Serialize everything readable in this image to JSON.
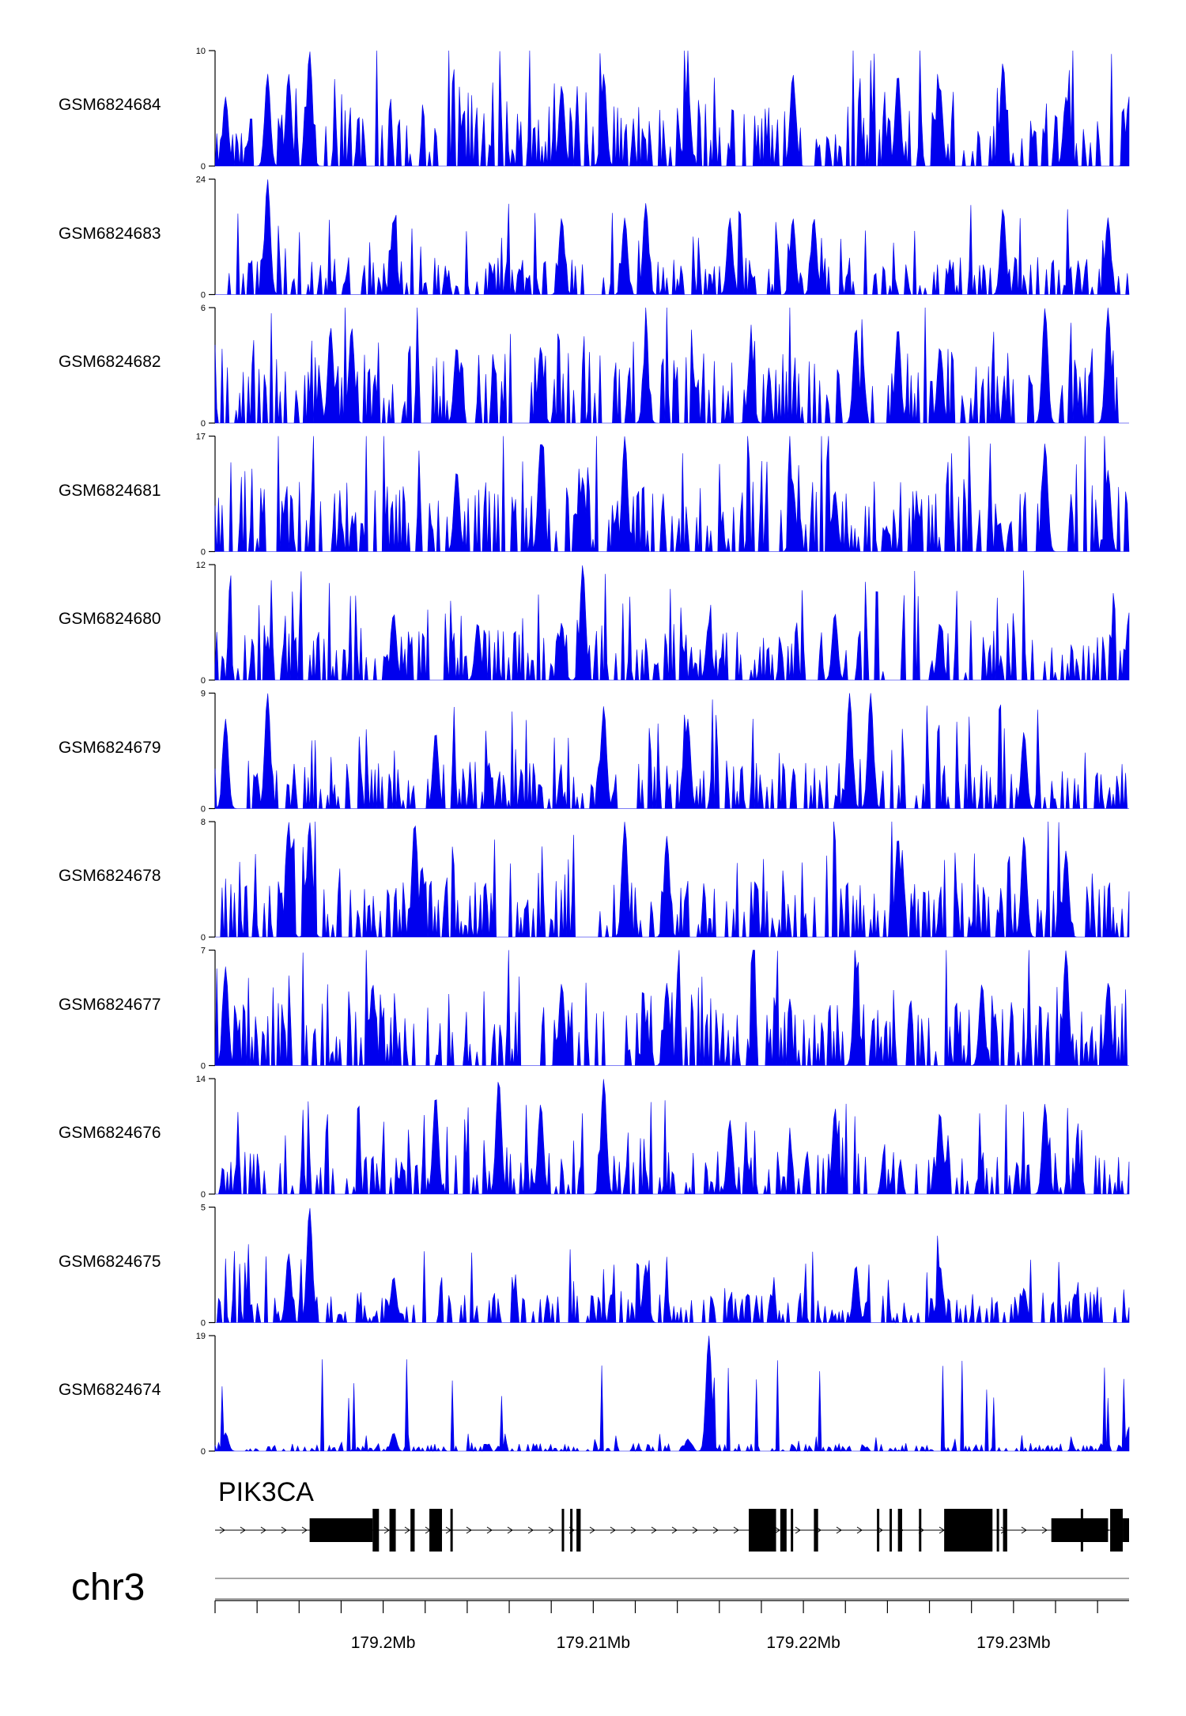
{
  "figure_title": "",
  "colors": {
    "signal": "#0000ee",
    "axis": "#000000",
    "gene": "#000000"
  },
  "gene": {
    "name": "PIK3CA",
    "strand": "+"
  },
  "chromosome": "chr3",
  "chart_data": {
    "type": "area",
    "x_unit": "Mb",
    "xlim": [
      179.192,
      179.2355
    ],
    "x_tick_labels": [
      "179.2Mb",
      "179.21Mb",
      "179.22Mb",
      "179.23Mb"
    ],
    "x_tick_label_values": [
      179.2,
      179.21,
      179.22,
      179.23
    ],
    "x_minor_ticks": [
      179.192,
      179.194,
      179.196,
      179.198,
      179.2,
      179.202,
      179.204,
      179.206,
      179.208,
      179.21,
      179.212,
      179.214,
      179.216,
      179.218,
      179.22,
      179.222,
      179.224,
      179.226,
      179.228,
      179.23,
      179.232,
      179.234
    ],
    "tracks": [
      {
        "name": "GSM6824684",
        "ymax": 10,
        "ymin_label": "0",
        "ymax_label": "10",
        "peaks": [
          [
            179.1965,
            10
          ],
          [
            179.1955,
            8
          ],
          [
            179.1945,
            8
          ],
          [
            179.1925,
            6
          ],
          [
            179.2105,
            8
          ],
          [
            179.2085,
            7
          ],
          [
            179.2145,
            7
          ],
          [
            179.2195,
            8
          ],
          [
            179.2245,
            8
          ],
          [
            179.2265,
            7
          ],
          [
            179.2295,
            9
          ],
          [
            179.2325,
            6
          ],
          [
            179.2355,
            6
          ]
        ],
        "base": 2
      },
      {
        "name": "GSM6824683",
        "ymax": 24,
        "ymin_label": "0",
        "ymax_label": "24",
        "peaks": [
          [
            179.1945,
            24
          ],
          [
            179.2005,
            16
          ],
          [
            179.2085,
            16
          ],
          [
            179.2125,
            19
          ],
          [
            179.2165,
            16
          ],
          [
            179.2195,
            16
          ],
          [
            179.2205,
            16
          ],
          [
            179.2295,
            18
          ],
          [
            179.2345,
            16
          ],
          [
            179.2115,
            16
          ]
        ],
        "base": 3
      },
      {
        "name": "GSM6824682",
        "ymax": 6,
        "ymin_label": "0",
        "ymax_label": "6",
        "peaks": [
          [
            179.1985,
            5
          ],
          [
            179.1975,
            5
          ],
          [
            179.2035,
            4
          ],
          [
            179.2075,
            4
          ],
          [
            179.2125,
            4
          ],
          [
            179.2175,
            4
          ],
          [
            179.2225,
            5
          ],
          [
            179.2245,
            5
          ],
          [
            179.2265,
            4
          ],
          [
            179.2315,
            6
          ],
          [
            179.2345,
            6
          ]
        ],
        "base": 1.5
      },
      {
        "name": "GSM6824681",
        "ymax": 17,
        "ymin_label": "0",
        "ymax_label": "17",
        "peaks": [
          [
            179.2075,
            16
          ],
          [
            179.2115,
            17
          ],
          [
            179.2035,
            12
          ],
          [
            179.2095,
            11
          ],
          [
            179.2215,
            9
          ],
          [
            179.2315,
            16
          ],
          [
            179.2345,
            12
          ],
          [
            179.2195,
            10
          ]
        ],
        "base": 4
      },
      {
        "name": "GSM6824680",
        "ymax": 12,
        "ymin_label": "0",
        "ymax_label": "12",
        "peaks": [
          [
            179.2095,
            12
          ],
          [
            179.2085,
            6
          ],
          [
            179.2005,
            7
          ],
          [
            179.2045,
            6
          ],
          [
            179.2155,
            6
          ],
          [
            179.2215,
            7
          ],
          [
            179.2265,
            6
          ],
          [
            179.2355,
            7
          ]
        ],
        "base": 2
      },
      {
        "name": "GSM6824679",
        "ymax": 9,
        "ymin_label": "0",
        "ymax_label": "9",
        "peaks": [
          [
            179.1945,
            9
          ],
          [
            179.2105,
            8
          ],
          [
            179.2145,
            7
          ],
          [
            179.2222,
            9
          ],
          [
            179.2232,
            9
          ],
          [
            179.1925,
            7
          ],
          [
            179.2025,
            6
          ],
          [
            179.2305,
            6
          ]
        ],
        "base": 1.5
      },
      {
        "name": "GSM6824678",
        "ymax": 8,
        "ymin_label": "0",
        "ymax_label": "8",
        "peaks": [
          [
            179.1955,
            8
          ],
          [
            179.1965,
            8
          ],
          [
            179.2015,
            8
          ],
          [
            179.2115,
            8
          ],
          [
            179.2135,
            7
          ],
          [
            179.2245,
            7
          ],
          [
            179.2305,
            7
          ],
          [
            179.2325,
            6
          ]
        ],
        "base": 1.5
      },
      {
        "name": "GSM6824677",
        "ymax": 7,
        "ymin_label": "0",
        "ymax_label": "7",
        "peaks": [
          [
            179.2225,
            6
          ],
          [
            179.2325,
            7
          ],
          [
            179.1925,
            6
          ],
          [
            179.1995,
            5
          ],
          [
            179.2085,
            5
          ],
          [
            179.2135,
            5
          ],
          [
            179.2285,
            5
          ],
          [
            179.2345,
            5
          ]
        ],
        "base": 1.5
      },
      {
        "name": "GSM6824676",
        "ymax": 14,
        "ymin_label": "0",
        "ymax_label": "14",
        "peaks": [
          [
            179.2055,
            14
          ],
          [
            179.2105,
            14
          ],
          [
            179.2025,
            12
          ],
          [
            179.2075,
            11
          ],
          [
            179.2165,
            9
          ],
          [
            179.2215,
            10
          ],
          [
            179.2265,
            10
          ],
          [
            179.2315,
            11
          ]
        ],
        "base": 2
      },
      {
        "name": "GSM6824675",
        "ymax": 5,
        "ymin_label": "0",
        "ymax_label": "5",
        "peaks": [
          [
            179.1965,
            5
          ],
          [
            179.1955,
            3
          ],
          [
            179.2005,
            2
          ],
          [
            179.2125,
            2.5
          ],
          [
            179.2225,
            2.5
          ],
          [
            179.2265,
            2.5
          ],
          [
            179.2305,
            1.5
          ]
        ],
        "base": 0.5
      },
      {
        "name": "GSM6824674",
        "ymax": 19,
        "ymin_label": "0",
        "ymax_label": "19",
        "peaks": [
          [
            179.2155,
            19
          ],
          [
            179.1925,
            3
          ],
          [
            179.2005,
            3
          ],
          [
            179.2145,
            2
          ],
          [
            179.2355,
            4
          ]
        ],
        "base": 0.5
      }
    ]
  },
  "gene_model": {
    "start": 179.1965,
    "end": 179.2355,
    "utr_blocks": [
      [
        179.1965,
        179.1995
      ],
      [
        179.2318,
        179.2345
      ],
      [
        179.2352,
        179.2355
      ]
    ],
    "cds_blocks": [
      [
        179.1995,
        179.1998
      ],
      [
        179.2003,
        179.2006
      ],
      [
        179.2013,
        179.2015
      ],
      [
        179.2022,
        179.2028
      ],
      [
        179.2032,
        179.2033
      ],
      [
        179.2085,
        179.2086
      ],
      [
        179.2089,
        179.209
      ],
      [
        179.2092,
        179.2094
      ],
      [
        179.2174,
        179.2187
      ],
      [
        179.2189,
        179.2192
      ],
      [
        179.2194,
        179.2195
      ],
      [
        179.2205,
        179.2207
      ],
      [
        179.2235,
        179.2236
      ],
      [
        179.2241,
        179.2242
      ],
      [
        179.2245,
        179.2247
      ],
      [
        179.2255,
        179.2256
      ],
      [
        179.2267,
        179.229
      ],
      [
        179.2292,
        179.2293
      ],
      [
        179.2295,
        179.2297
      ],
      [
        179.2332,
        179.2333
      ],
      [
        179.2346,
        179.2352
      ]
    ]
  }
}
